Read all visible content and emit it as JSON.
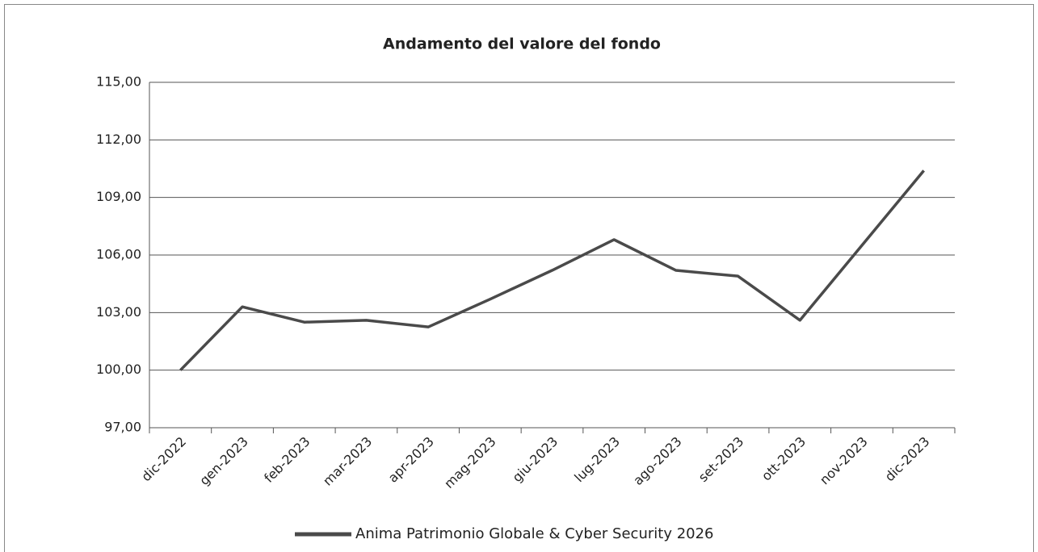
{
  "chart_data": {
    "type": "line",
    "title": "Andamento del valore del fondo",
    "categories": [
      "dic-2022",
      "gen-2023",
      "feb-2023",
      "mar-2023",
      "apr-2023",
      "mag-2023",
      "giu-2023",
      "lug-2023",
      "ago-2023",
      "set-2023",
      "ott-2023",
      "nov-2023",
      "dic-2023"
    ],
    "series": [
      {
        "name": "Anima Patrimonio Globale & Cyber Security 2026",
        "color": "#4a4a4a",
        "values": [
          100.0,
          103.3,
          102.5,
          102.6,
          102.25,
          103.7,
          105.2,
          106.8,
          105.2,
          104.9,
          102.6,
          106.5,
          110.4
        ]
      }
    ],
    "ylim": [
      97,
      115
    ],
    "yticks": [
      {
        "value": 97,
        "label": "97,00"
      },
      {
        "value": 100,
        "label": "100,00"
      },
      {
        "value": 103,
        "label": "103,00"
      },
      {
        "value": 106,
        "label": "106,00"
      },
      {
        "value": 109,
        "label": "109,00"
      },
      {
        "value": 112,
        "label": "112,00"
      },
      {
        "value": 115,
        "label": "115,00"
      }
    ],
    "grid": true,
    "legend": "bottom"
  }
}
